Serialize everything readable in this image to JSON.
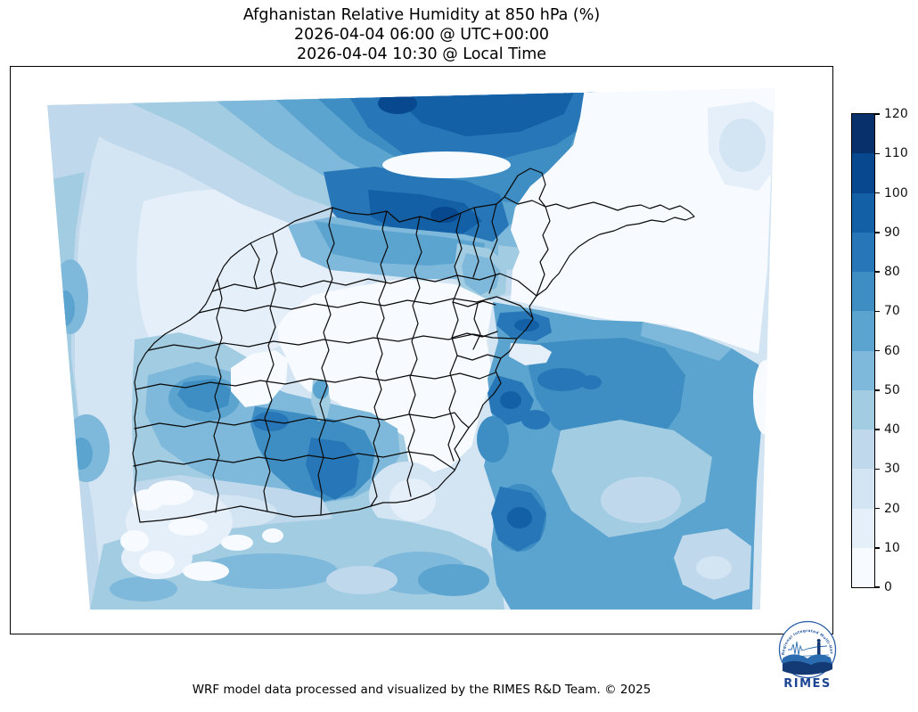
{
  "title": {
    "line1": "Afghanistan Relative Humidity at 850 hPa (%)",
    "line2": "2026-04-04 06:00 @ UTC+00:00",
    "line3": "2026-04-04 10:30 @ Local Time"
  },
  "footer": {
    "text": "WRF model data processed and visualized by the RIMES R&D Team. © 2025"
  },
  "colorbar": {
    "min": 0,
    "max": 120,
    "step": 10,
    "ticks_top_to_bottom": [
      "120",
      "110",
      "100",
      "90",
      "80",
      "70",
      "60",
      "50",
      "40",
      "30",
      "20",
      "10",
      "0"
    ],
    "colors_top_to_bottom": [
      "#08306b",
      "#08488f",
      "#1360a7",
      "#2777b8",
      "#3e8ec4",
      "#5ca4d0",
      "#7eb8da",
      "#a2cce2",
      "#bfd8ec",
      "#d3e4f3",
      "#e5eff9",
      "#f7fbff"
    ]
  },
  "map": {
    "palette_low_to_high": [
      "#f7fbff",
      "#e5eff9",
      "#d3e4f3",
      "#bfd8ec",
      "#a2cce2",
      "#7eb8da",
      "#5ca4d0",
      "#3e8ec4",
      "#2777b8",
      "#1360a7",
      "#08488f",
      "#08306b"
    ],
    "boundary_color": "#0a0a0a",
    "background": "#ffffff",
    "boundaries_shown": "Afghanistan province borders"
  },
  "logo": {
    "name": "RIMES",
    "ring_text": "Regional Integrated Multi-Hazard Early Warning System",
    "accent": "#1c4693",
    "wave_light": "#2b6cb0",
    "wave_dark": "#143a75"
  },
  "chart_data": {
    "type": "heatmap",
    "title": "Afghanistan Relative Humidity at 850 hPa (%)",
    "subtitle_utc": "2026-04-04 06:00 @ UTC+00:00",
    "subtitle_local": "2026-04-04 10:30 @ Local Time",
    "variable": "relative humidity",
    "pressure_level_hPa": 850,
    "units": "%",
    "levels": [
      0,
      10,
      20,
      30,
      40,
      50,
      60,
      70,
      80,
      90,
      100,
      110,
      120
    ],
    "colors": [
      "#f7fbff",
      "#e5eff9",
      "#d3e4f3",
      "#bfd8ec",
      "#a2cce2",
      "#7eb8da",
      "#5ca4d0",
      "#3e8ec4",
      "#2777b8",
      "#1360a7",
      "#08488f",
      "#08306b"
    ],
    "legend_position": "right",
    "grid": false,
    "map_overlay": "Afghanistan province boundaries in black",
    "region_values_approx": [
      {
        "region": "northern border belt (top of domain)",
        "rh_percent": "80-110"
      },
      {
        "region": "north Afghanistan provinces (Faryab-Balkh belt)",
        "rh_percent": "60-100"
      },
      {
        "region": "central Afghanistan highlands",
        "rh_percent": "0-20"
      },
      {
        "region": "northeast / Wakhan corridor and beyond",
        "rh_percent": "0-10"
      },
      {
        "region": "west near Iran border",
        "rh_percent": "20-40"
      },
      {
        "region": "southwest (Helmand-Kandahar belt)",
        "rh_percent": "40-90"
      },
      {
        "region": "southeast quadrant (Pakistan side)",
        "rh_percent": "50-80"
      },
      {
        "region": "far south strip",
        "rh_percent": "30-60"
      }
    ]
  }
}
